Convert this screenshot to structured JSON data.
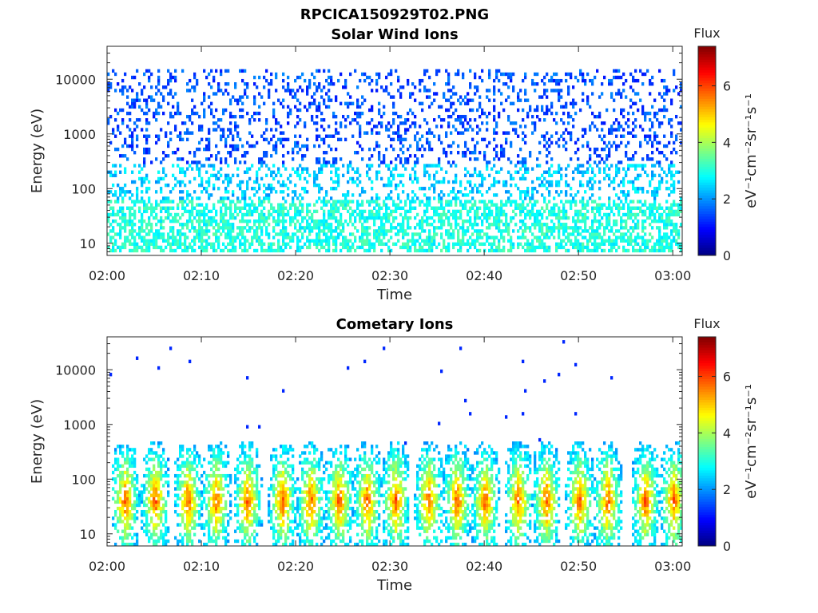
{
  "figure": {
    "title": "RPCICA150929T02.PNG"
  },
  "colors": {
    "axis": "#262626",
    "colormap": [
      "#00007f",
      "#0000ff",
      "#007fff",
      "#00ffff",
      "#7fff7f",
      "#ffff00",
      "#ff7f00",
      "#ff0000",
      "#7f0000"
    ]
  },
  "chart_data": [
    {
      "type": "heatmap",
      "title": "Solar Wind Ions",
      "xlabel": "Time",
      "ylabel": "Energy (eV)",
      "xlim": [
        "02:00",
        "03:01"
      ],
      "xticks": [
        "02:00",
        "02:10",
        "02:20",
        "02:30",
        "02:40",
        "02:50",
        "03:00"
      ],
      "y_scale": "log",
      "ylim": [
        6,
        40000
      ],
      "yticks": [
        10,
        100,
        1000,
        10000
      ],
      "ytick_labels": [
        "10",
        "100",
        "1000",
        "10000"
      ],
      "colorbar": {
        "title": "Flux",
        "label": "eV⁻¹cm⁻²sr⁻¹s⁻¹",
        "range": [
          0,
          7.4
        ],
        "ticks": [
          "0",
          "2",
          "4",
          "6"
        ]
      },
      "pattern": "sparse blue pixels (flux ~1-2) spread from 10 eV to 15000 eV; cyan/green band (flux ~3) below 100 eV",
      "bands": [
        {
          "emin": 7,
          "emax": 60,
          "flux": 3.0,
          "density": 0.55
        },
        {
          "emin": 60,
          "emax": 300,
          "flux": 2.4,
          "density": 0.3
        },
        {
          "emin": 300,
          "emax": 15000,
          "flux": 1.5,
          "density": 0.22
        }
      ]
    },
    {
      "type": "heatmap",
      "title": "Cometary Ions",
      "xlabel": "Time",
      "ylabel": "Energy (eV)",
      "xlim": [
        "02:00",
        "03:01"
      ],
      "xticks": [
        "02:00",
        "02:10",
        "02:20",
        "02:30",
        "02:40",
        "02:50",
        "03:00"
      ],
      "y_scale": "log",
      "ylim": [
        6,
        40000
      ],
      "yticks": [
        10,
        100,
        1000,
        10000
      ],
      "ytick_labels": [
        "10",
        "100",
        "1000",
        "10000"
      ],
      "colorbar": {
        "title": "Flux",
        "label": "eV⁻¹cm⁻²sr⁻¹s⁻¹",
        "range": [
          0,
          7.4
        ],
        "ticks": [
          "0",
          "2",
          "4",
          "6"
        ]
      },
      "pattern": "periodic bursts (~2.5 min spacing) between 10 and 400 eV, peak flux ~5-6 near 30-60 eV; isolated dark-blue pixels up to 17000 eV",
      "bursts_minutes": [
        1.8,
        5.0,
        8.5,
        11.5,
        14.8,
        18.5,
        21.5,
        24.5,
        27.5,
        30.5,
        34.0,
        37.0,
        40.0,
        43.5,
        46.5,
        50.0,
        53.0,
        57.0,
        60.0
      ],
      "peak_energy_eV": 40,
      "peak_flux": 5.8
    }
  ]
}
